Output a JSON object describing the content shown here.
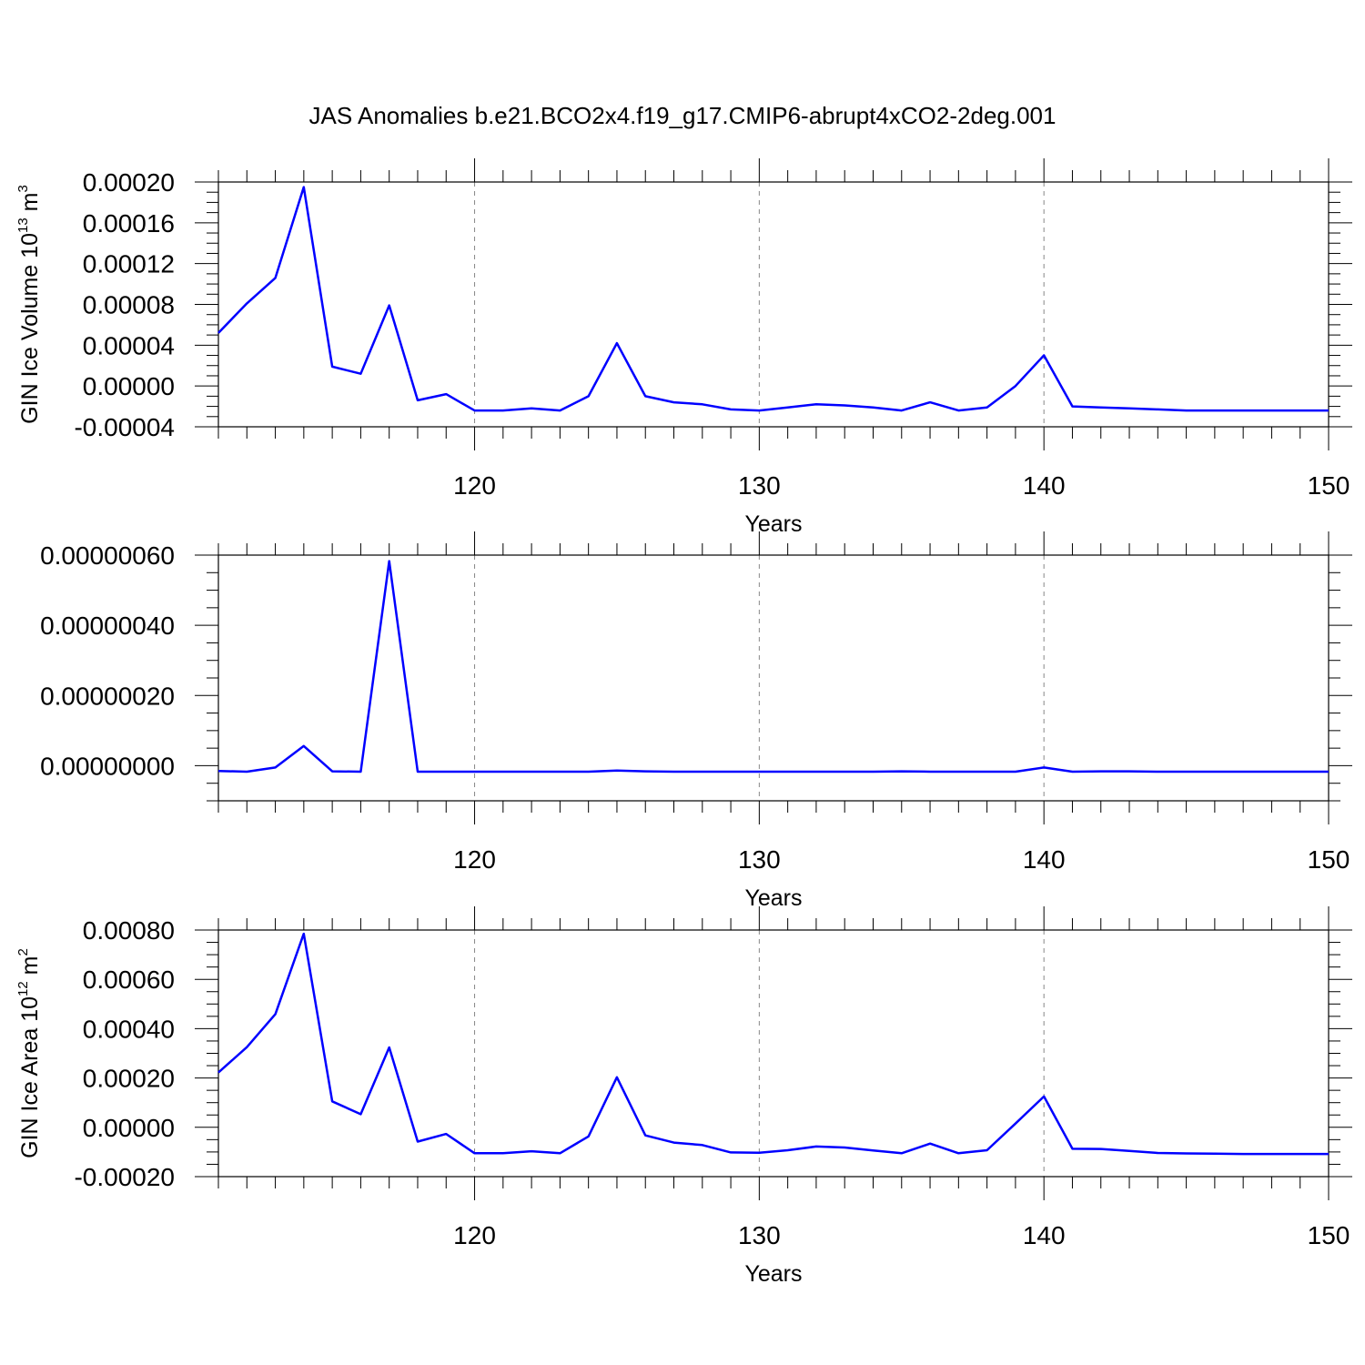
{
  "title": "JAS Anomalies b.e21.BCO2x4.f19_g17.CMIP6-abrupt4xCO2-2deg.001",
  "chart_data": [
    {
      "type": "line",
      "ylabel": "GIN Ice Volume 10",
      "ylabel_sup": "13",
      "ylabel_unit": " m",
      "ylabel_unit_sup": "3",
      "xlabel": "Years",
      "xlim": [
        111,
        150
      ],
      "ylim": [
        -4e-05,
        0.0002
      ],
      "xticks": [
        120,
        130,
        140,
        150
      ],
      "xtick_labels": [
        "120",
        "130",
        "140",
        "150"
      ],
      "yticks": [
        -4e-05,
        0.0,
        4e-05,
        8e-05,
        0.00012,
        0.00016,
        0.0002
      ],
      "ytick_labels": [
        "-0.00004",
        "0.00000",
        "0.00004",
        "0.00008",
        "0.00012",
        "0.00016",
        "0.00020"
      ],
      "yminor_step": 1e-05,
      "grid": "vertical dashed at major x ticks",
      "color": "#0000ff",
      "x": [
        111,
        112,
        113,
        114,
        115,
        116,
        117,
        118,
        119,
        120,
        121,
        122,
        123,
        124,
        125,
        126,
        127,
        128,
        129,
        130,
        131,
        132,
        133,
        134,
        135,
        136,
        137,
        138,
        139,
        140,
        141,
        142,
        143,
        144,
        145,
        146,
        147,
        148,
        149,
        150
      ],
      "values": [
        5.2e-05,
        8.1e-05,
        0.000106,
        0.000195,
        1.9e-05,
        1.2e-05,
        7.9e-05,
        -1.4e-05,
        -8e-06,
        -2.4e-05,
        -2.4e-05,
        -2.2e-05,
        -2.4e-05,
        -1e-05,
        4.2e-05,
        -1e-05,
        -1.6e-05,
        -1.8e-05,
        -2.3e-05,
        -2.4e-05,
        -2.1e-05,
        -1.8e-05,
        -1.9e-05,
        -2.1e-05,
        -2.4e-05,
        -1.6e-05,
        -2.4e-05,
        -2.1e-05,
        0.0,
        3e-05,
        -2e-05,
        -2.1e-05,
        -2.2e-05,
        -2.3e-05,
        -2.4e-05,
        -2.4e-05,
        -2.4e-05,
        -2.4e-05,
        -2.4e-05,
        -2.4e-05
      ]
    },
    {
      "type": "line",
      "ylabel": "",
      "xlabel": "Years",
      "xlim": [
        111,
        150
      ],
      "ylim": [
        -1e-07,
        6e-07
      ],
      "xticks": [
        120,
        130,
        140,
        150
      ],
      "xtick_labels": [
        "120",
        "130",
        "140",
        "150"
      ],
      "yticks": [
        0.0,
        2e-07,
        4e-07,
        6e-07
      ],
      "ytick_labels": [
        "0.00000000",
        "0.00000020",
        "0.00000040",
        "0.00000060"
      ],
      "yminor_step": 5e-08,
      "grid": "vertical dashed at major x ticks",
      "color": "#0000ff",
      "x": [
        111,
        112,
        113,
        114,
        115,
        116,
        117,
        118,
        119,
        120,
        121,
        122,
        123,
        124,
        125,
        126,
        127,
        128,
        129,
        130,
        131,
        132,
        133,
        134,
        135,
        136,
        137,
        138,
        139,
        140,
        141,
        142,
        143,
        144,
        145,
        146,
        147,
        148,
        149,
        150
      ],
      "values": [
        -1.5e-08,
        -1.7e-08,
        -5e-09,
        5.6e-08,
        -1.6e-08,
        -1.7e-08,
        5.83e-07,
        -1.7e-08,
        -1.7e-08,
        -1.7e-08,
        -1.7e-08,
        -1.7e-08,
        -1.7e-08,
        -1.7e-08,
        -1.4e-08,
        -1.6e-08,
        -1.7e-08,
        -1.7e-08,
        -1.7e-08,
        -1.7e-08,
        -1.7e-08,
        -1.7e-08,
        -1.7e-08,
        -1.7e-08,
        -1.6e-08,
        -1.7e-08,
        -1.7e-08,
        -1.7e-08,
        -1.7e-08,
        -5e-09,
        -1.7e-08,
        -1.6e-08,
        -1.6e-08,
        -1.7e-08,
        -1.7e-08,
        -1.7e-08,
        -1.7e-08,
        -1.7e-08,
        -1.7e-08,
        -1.7e-08
      ]
    },
    {
      "type": "line",
      "ylabel": "GIN Ice Area 10",
      "ylabel_sup": "12",
      "ylabel_unit": " m",
      "ylabel_unit_sup": "2",
      "xlabel": "Years",
      "xlim": [
        111,
        150
      ],
      "ylim": [
        -0.0002,
        0.0008
      ],
      "xticks": [
        120,
        130,
        140,
        150
      ],
      "xtick_labels": [
        "120",
        "130",
        "140",
        "150"
      ],
      "yticks": [
        -0.0002,
        0.0,
        0.0002,
        0.0004,
        0.0006,
        0.0008
      ],
      "ytick_labels": [
        "-0.00020",
        "0.00000",
        "0.00020",
        "0.00040",
        "0.00060",
        "0.00080"
      ],
      "yminor_step": 5e-05,
      "grid": "vertical dashed at major x ticks",
      "color": "#0000ff",
      "x": [
        111,
        112,
        113,
        114,
        115,
        116,
        117,
        118,
        119,
        120,
        121,
        122,
        123,
        124,
        125,
        126,
        127,
        128,
        129,
        130,
        131,
        132,
        133,
        134,
        135,
        136,
        137,
        138,
        139,
        140,
        141,
        142,
        143,
        144,
        145,
        146,
        147,
        148,
        149,
        150
      ],
      "values": [
        0.000222,
        0.000325,
        0.000459,
        0.000785,
        0.000105,
        5.3e-05,
        0.000324,
        -5.8e-05,
        -2.7e-05,
        -0.000105,
        -0.000105,
        -9.7e-05,
        -0.000105,
        -3.7e-05,
        0.000203,
        -3.3e-05,
        -6.2e-05,
        -7.2e-05,
        -0.000102,
        -0.000103,
        -9.3e-05,
        -7.8e-05,
        -8.2e-05,
        -9.4e-05,
        -0.000105,
        -6.6e-05,
        -0.000105,
        -9.3e-05,
        1.5e-05,
        0.000125,
        -8.7e-05,
        -8.8e-05,
        -9.6e-05,
        -0.000104,
        -0.000106,
        -0.000107,
        -0.000108,
        -0.000108,
        -0.000108,
        -0.000108
      ]
    }
  ]
}
